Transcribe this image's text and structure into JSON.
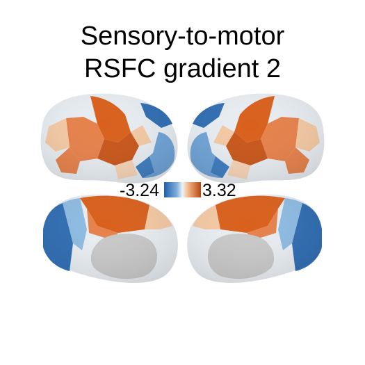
{
  "title": {
    "line1": "Sensory-to-motor",
    "line2": "RSFC gradient 2"
  },
  "colorbar": {
    "min_label": "-3.24",
    "max_label": "3.32",
    "colors": [
      "#1f5fa8",
      "#6aa6d8",
      "#e9eef4",
      "#f3b98a",
      "#d9601c",
      "#b8470f"
    ]
  },
  "views": [
    "left-lateral",
    "right-lateral",
    "left-medial",
    "right-medial"
  ],
  "palette": {
    "neutral": "#e8edf2",
    "light_blue": "#a9cbe6",
    "mid_blue": "#4f8fcb",
    "dark_blue": "#2f6db3",
    "light_orange": "#f4c9a3",
    "mid_orange": "#e6814a",
    "dark_orange": "#c8561a",
    "medial_wall": "#c8c8c8"
  }
}
